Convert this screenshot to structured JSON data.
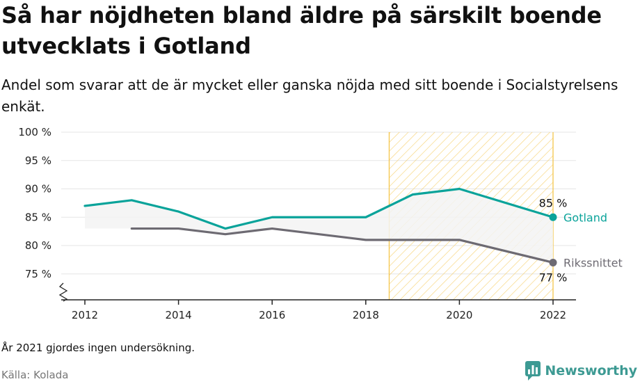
{
  "title": "Så har nöjdheten bland äldre på särskilt boende utvecklats i Gotland",
  "subtitle": "Andel som svarar att de är mycket eller ganska nöjda med sitt boende i Socialstyrelsens enkät.",
  "note": "År 2021 gjordes ingen undersökning.",
  "source": "Källa: Kolada",
  "brand": "Newsworthy",
  "colors": {
    "gotland": "#0aa39a",
    "riks": "#6d6a72",
    "highlight": "#f5c54a",
    "band": "#f3f3f3",
    "grid": "#e6e6e6",
    "brand": "#3d9a93"
  },
  "chart_data": {
    "type": "line",
    "x_ticks": [
      "2012",
      "2014",
      "2016",
      "2018",
      "2020",
      "2022"
    ],
    "y_ticks": [
      "100 %",
      "95 %",
      "90 %",
      "85 %",
      "80 %",
      "75 %"
    ],
    "ylim": [
      70,
      100
    ],
    "y_axis_broken": true,
    "highlight_range": [
      2018.5,
      2022
    ],
    "series": [
      {
        "name": "Gotland",
        "key": "gotland",
        "x": [
          2012,
          2013,
          2014,
          2015,
          2016,
          2017,
          2018,
          2019,
          2020,
          2022
        ],
        "values": [
          87,
          88,
          86,
          83,
          85,
          85,
          85,
          89,
          90,
          85
        ],
        "end_label": "85 %"
      },
      {
        "name": "Rikssnittet",
        "key": "riks",
        "x": [
          2013,
          2014,
          2015,
          2016,
          2017,
          2018,
          2019,
          2020,
          2022
        ],
        "values": [
          83,
          83,
          82,
          83,
          82,
          81,
          81,
          81,
          77
        ],
        "end_label": "77 %"
      }
    ],
    "band_x": [
      2012,
      2013,
      2014,
      2015,
      2016,
      2017,
      2018,
      2019,
      2020,
      2022
    ],
    "band_lower": [
      83,
      83,
      83,
      82,
      83,
      82,
      81,
      81,
      81,
      77
    ],
    "band_upper": [
      87,
      88,
      86,
      83,
      85,
      85,
      85,
      89,
      90,
      85
    ],
    "grid": true
  }
}
